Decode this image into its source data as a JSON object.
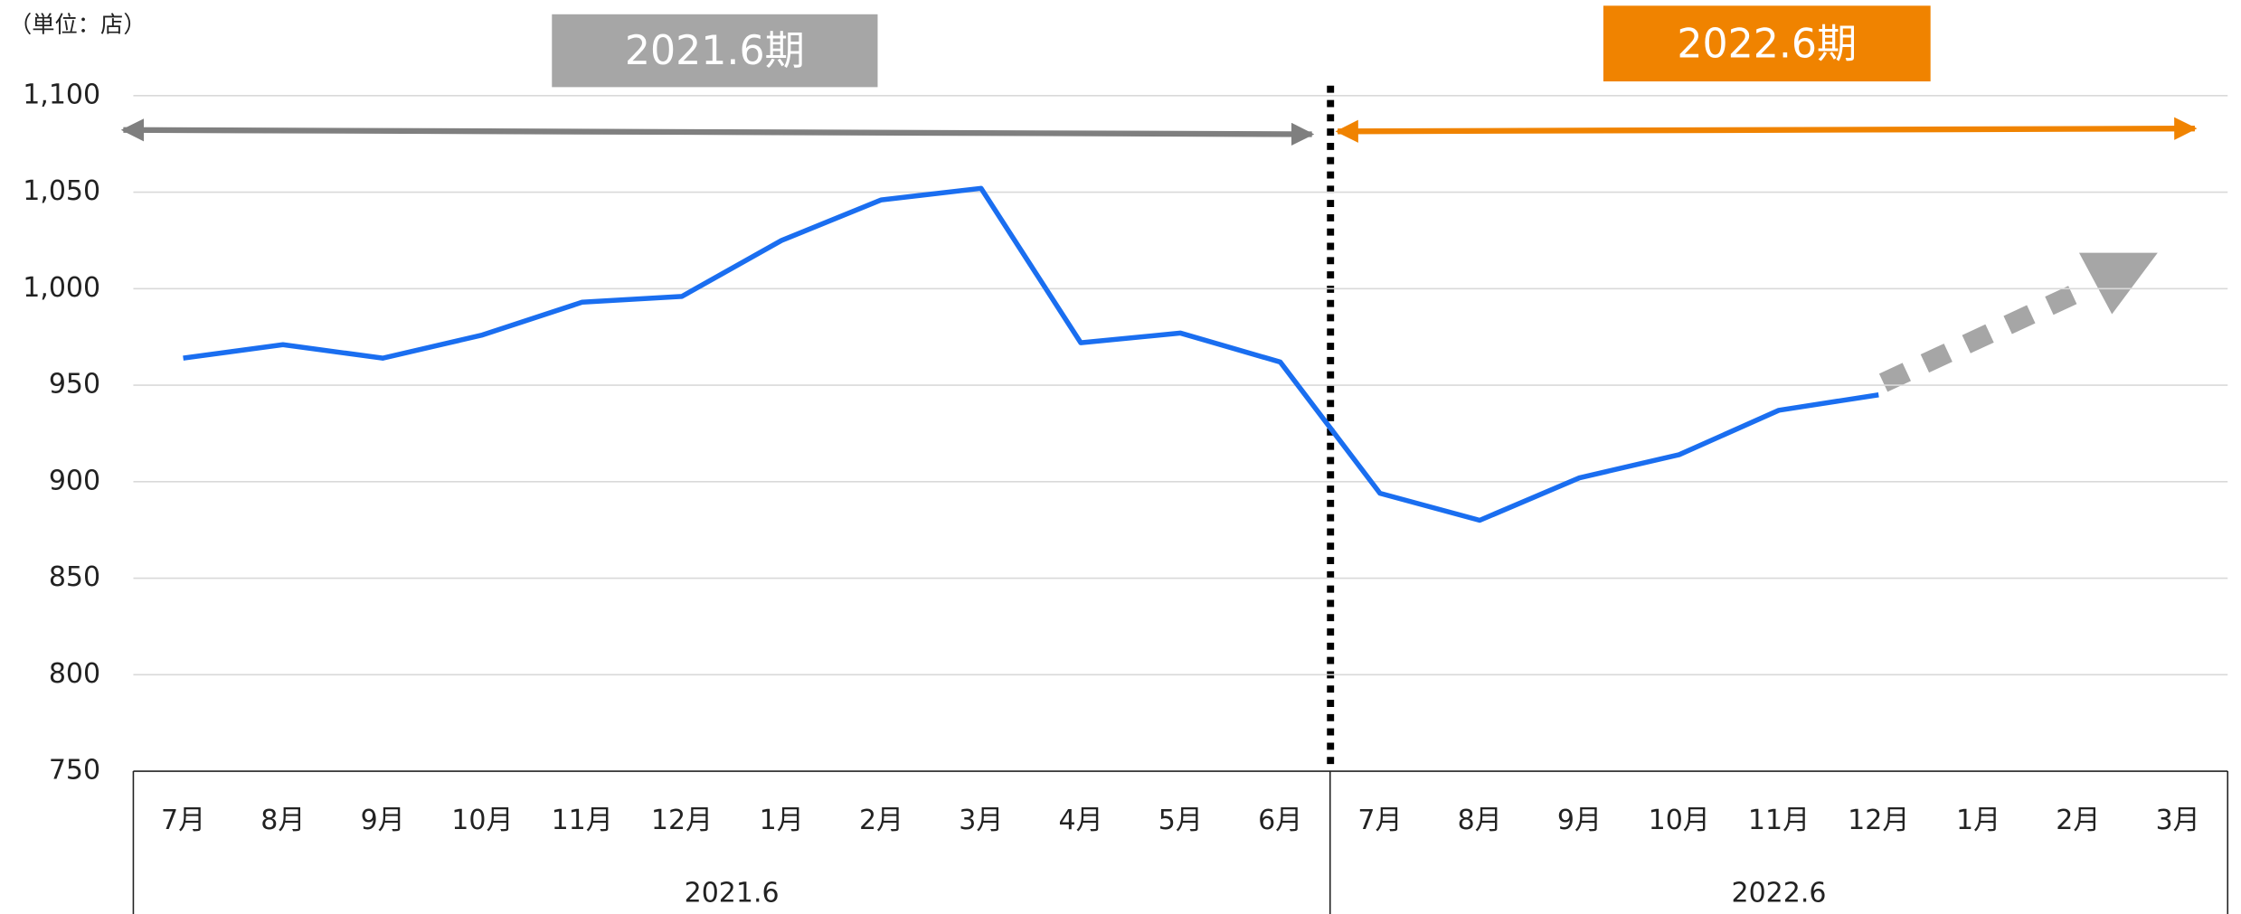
{
  "chart_data": {
    "type": "line",
    "unit_label": "（単位：店）",
    "period_labels": [
      "2021.6期",
      "2022.6期"
    ],
    "period_colors": [
      "#a6a6a6",
      "#f08300"
    ],
    "categories": [
      "7月",
      "8月",
      "9月",
      "10月",
      "11月",
      "12月",
      "1月",
      "2月",
      "3月",
      "4月",
      "5月",
      "6月",
      "7月",
      "8月",
      "9月",
      "10月",
      "11月",
      "12月",
      "1月",
      "2月",
      "3月"
    ],
    "groups": [
      "2021.6",
      "2022.6"
    ],
    "values": [
      964,
      971,
      964,
      976,
      993,
      996,
      1025,
      1046,
      1052,
      972,
      977,
      962,
      894,
      880,
      902,
      914,
      937,
      945,
      null,
      null,
      null
    ],
    "color": "#1a6ef0",
    "ylim": [
      750,
      1100
    ],
    "yticks": [
      750,
      800,
      850,
      900,
      950,
      {
        "value": 1000,
        "label": "1,000"
      },
      {
        "value": 1050,
        "label": "1,050"
      },
      {
        "value": 1100,
        "label": "1,100"
      }
    ],
    "grid": true
  }
}
